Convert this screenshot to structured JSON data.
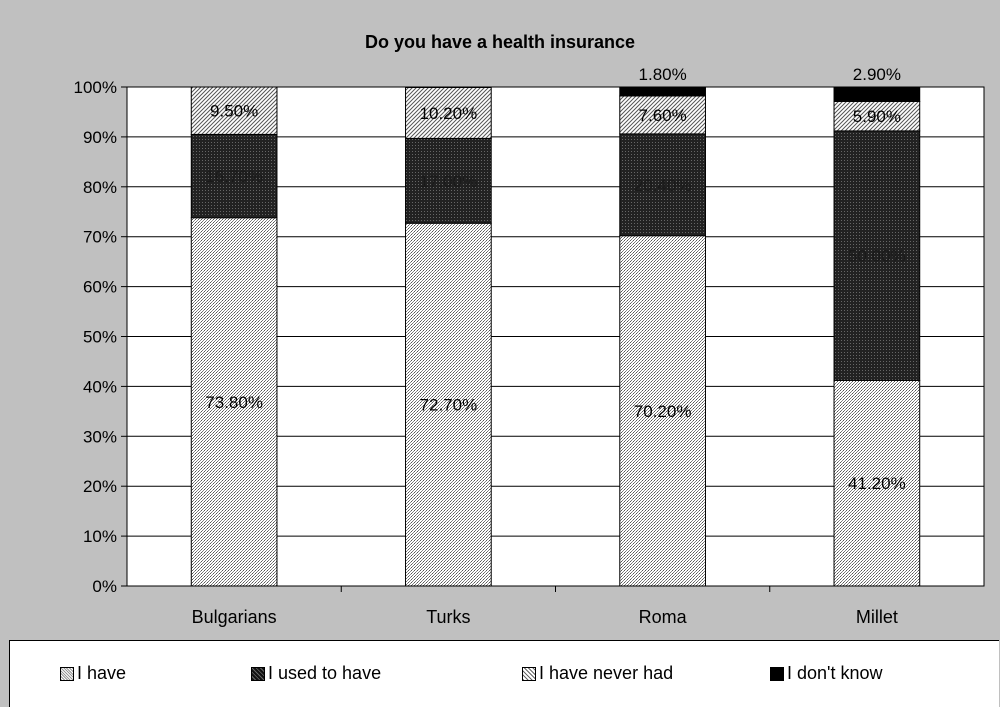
{
  "chart_data": {
    "type": "bar",
    "stacked": true,
    "title": "Do you have a health insurance",
    "categories": [
      "Bulgarians",
      "Turks",
      "Roma",
      "Millet"
    ],
    "series": [
      {
        "name": "I have",
        "values": [
          73.8,
          72.7,
          70.2,
          41.2
        ],
        "labels": [
          "73.80%",
          "72.70%",
          "70.20%",
          "41.20%"
        ],
        "pattern": "light-dots"
      },
      {
        "name": "I used to have",
        "values": [
          16.7,
          17.0,
          20.4,
          50.0
        ],
        "labels": [
          "16.70%",
          "17.00%",
          "20.40%",
          "50.00%"
        ],
        "pattern": "dark-dots"
      },
      {
        "name": "I have never had",
        "values": [
          9.5,
          10.2,
          7.6,
          5.9
        ],
        "labels": [
          "9.50%",
          "10.20%",
          "7.60%",
          "5.90%"
        ],
        "pattern": "diagonal"
      },
      {
        "name": "I don't know",
        "values": [
          0,
          0,
          1.8,
          2.9
        ],
        "labels": [
          "",
          "",
          "1.80%",
          "2.90%"
        ],
        "pattern": "solid-black"
      }
    ],
    "yaxis_ticks": [
      "0%",
      "10%",
      "20%",
      "30%",
      "40%",
      "50%",
      "60%",
      "70%",
      "80%",
      "90%",
      "100%"
    ],
    "ylim": [
      0,
      100
    ],
    "grid": true,
    "legend_position": "bottom"
  }
}
